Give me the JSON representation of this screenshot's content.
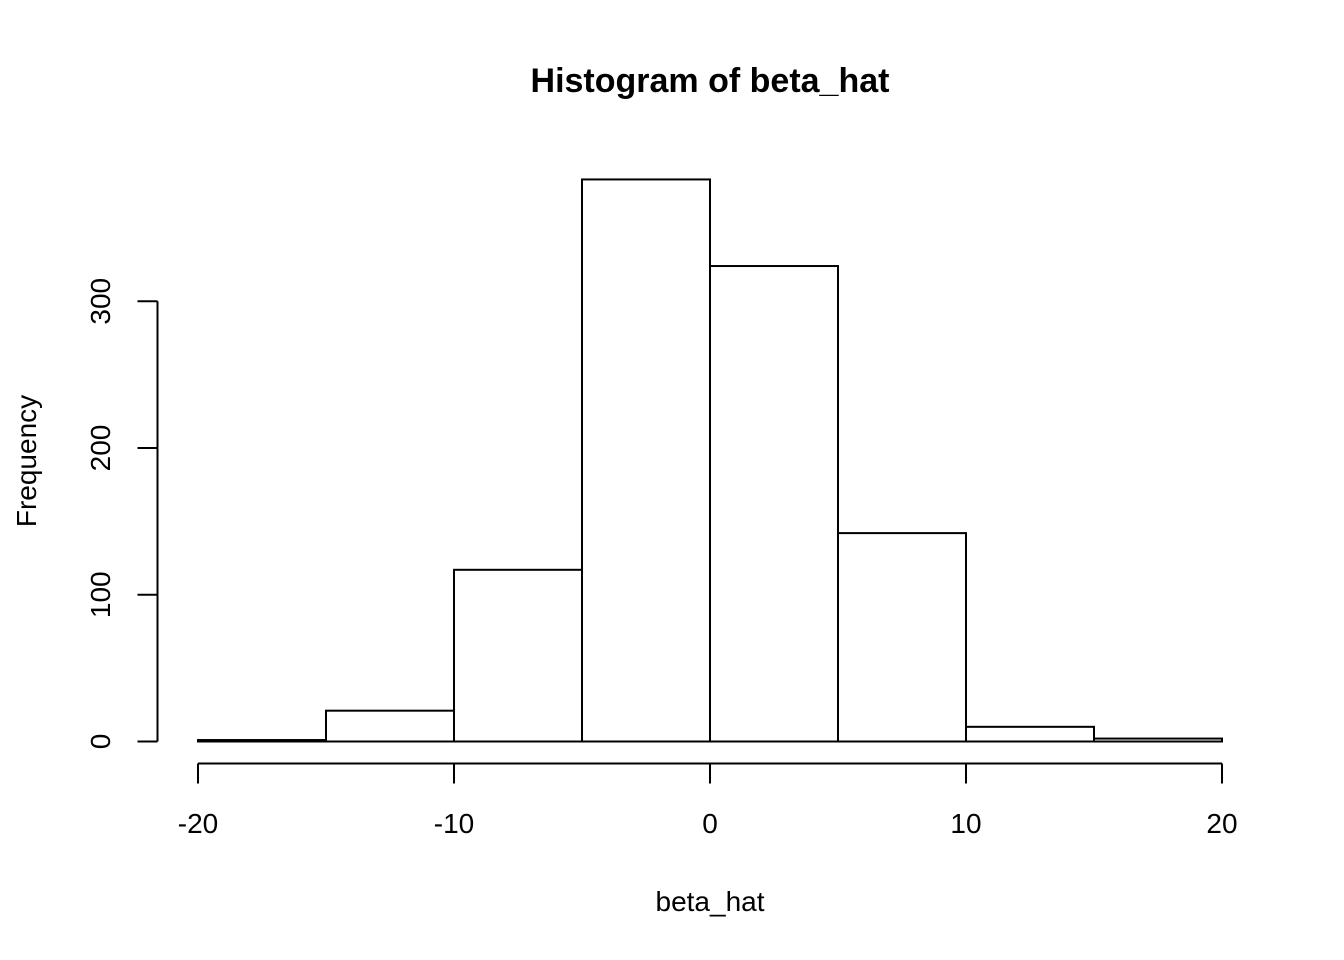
{
  "chart_data": {
    "type": "bar",
    "title": "Histogram of beta_hat",
    "xlabel": "beta_hat",
    "ylabel": "Frequency",
    "bins": [
      {
        "start": -20,
        "end": -15,
        "count": 1
      },
      {
        "start": -15,
        "end": -10,
        "count": 21
      },
      {
        "start": -10,
        "end": -5,
        "count": 117
      },
      {
        "start": -5,
        "end": 0,
        "count": 383
      },
      {
        "start": 0,
        "end": 5,
        "count": 324
      },
      {
        "start": 5,
        "end": 10,
        "count": 142
      },
      {
        "start": 10,
        "end": 15,
        "count": 10
      },
      {
        "start": 15,
        "end": 20,
        "count": 2
      }
    ],
    "xlim": [
      -20,
      20
    ],
    "ylim": [
      0,
      383
    ],
    "x_ticks": [
      {
        "value": -20,
        "label": "-20"
      },
      {
        "value": -10,
        "label": "-10"
      },
      {
        "value": 0,
        "label": "0"
      },
      {
        "value": 10,
        "label": "10"
      },
      {
        "value": 20,
        "label": "20"
      }
    ],
    "y_ticks": [
      {
        "value": 0,
        "label": "0"
      },
      {
        "value": 100,
        "label": "100"
      },
      {
        "value": 200,
        "label": "200"
      },
      {
        "value": 300,
        "label": "300"
      }
    ],
    "grid": false,
    "colors": {
      "bar_fill": "#ffffff",
      "bar_stroke": "#000000",
      "axis": "#000000"
    }
  }
}
